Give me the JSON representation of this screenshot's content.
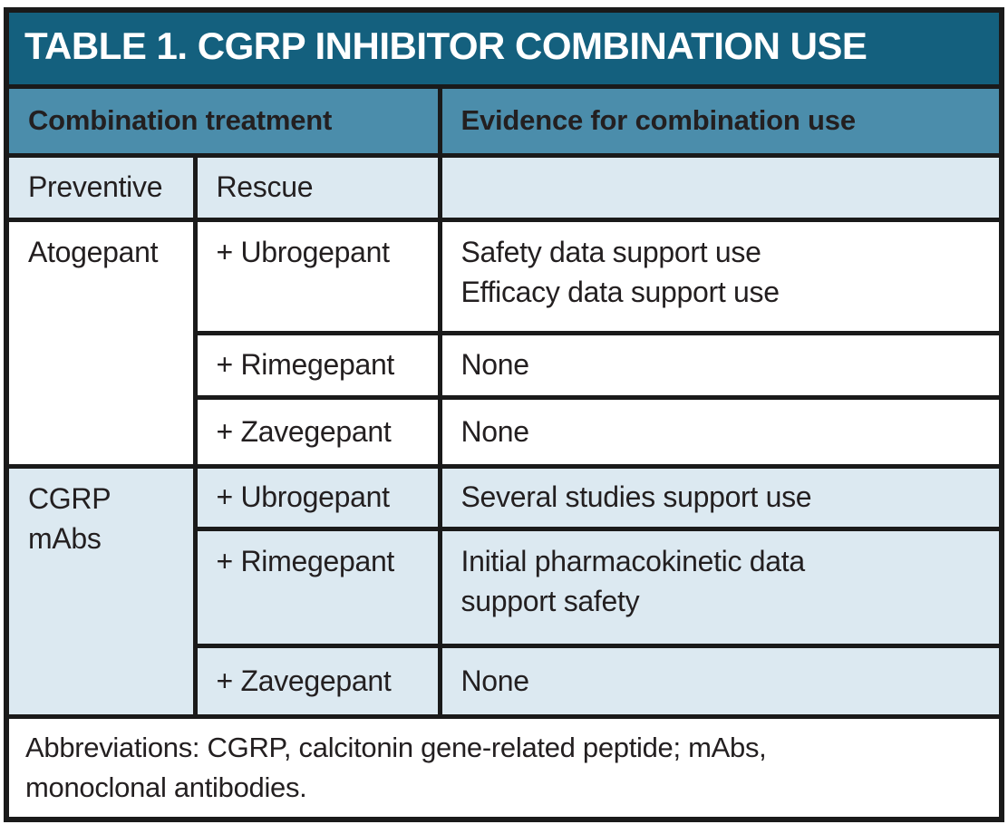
{
  "title": "TABLE 1. CGRP INHIBITOR COMBINATION USE",
  "columns": {
    "combination_treatment": "Combination treatment",
    "evidence": "Evidence for combination use"
  },
  "subcolumns": {
    "preventive": "Preventive",
    "rescue": "Rescue"
  },
  "groups": [
    {
      "preventive": "Atogepant",
      "rows": [
        {
          "rescue": "+ Ubrogepant",
          "evidence": "Safety data support use\nEfficacy data support use"
        },
        {
          "rescue": "+ Rimegepant",
          "evidence": "None"
        },
        {
          "rescue": "+ Zavegepant",
          "evidence": "None"
        }
      ]
    },
    {
      "preventive": "CGRP mAbs",
      "rows": [
        {
          "rescue": "+ Ubrogepant",
          "evidence": "Several studies support use"
        },
        {
          "rescue": "+ Rimegepant",
          "evidence": "Initial pharmacokinetic data\nsupport safety"
        },
        {
          "rescue": "+ Zavegepant",
          "evidence": "None"
        }
      ]
    }
  ],
  "footnote": "Abbreviations: CGRP, calcitonin gene-related peptide; mAbs,\nmonoclonal antibodies.",
  "colors": {
    "title_bg": "#14607E",
    "title_text": "#FFFFFF",
    "header_bg": "#4B8DAB",
    "row_light_bg": "#DCE9F1",
    "row_white_bg": "#FFFFFF",
    "grid_border": "#1A1A1A",
    "body_text": "#231F20"
  }
}
